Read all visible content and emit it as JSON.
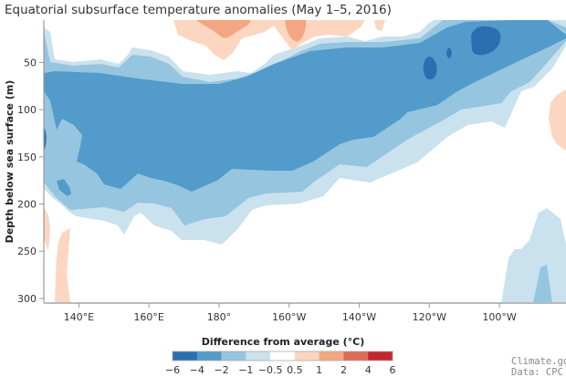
{
  "chart_data": {
    "type": "heatmap",
    "subtype": "filled-contour",
    "title": "Equatorial subsurface temperature anomalies (May 1–5, 2016)",
    "xlabel": "",
    "ylabel": "Depth below sea surface (m)",
    "x_ticks": [
      "140°E",
      "160°E",
      "180°",
      "160°W",
      "140°W",
      "120°W",
      "100°W"
    ],
    "x_tick_values_lon_east": [
      140,
      160,
      180,
      200,
      220,
      240,
      260
    ],
    "xlim_lon_east": [
      130,
      279
    ],
    "y_ticks": [
      "50",
      "100",
      "150",
      "200",
      "250",
      "300"
    ],
    "y_tick_values": [
      50,
      100,
      150,
      200,
      250,
      300
    ],
    "ylim": [
      305,
      5
    ],
    "legend": {
      "title": "Difference from average (°C)",
      "placement": "bottom-center",
      "levels": [
        "−6",
        "−4",
        "−2",
        "−1",
        "−0.5",
        "0.5",
        "1",
        "2",
        "4",
        "6"
      ],
      "colors": [
        "#2b6fb0",
        "#529bcb",
        "#95c5df",
        "#cae1ee",
        "#ffffff",
        "#fcd6c1",
        "#f4a582",
        "#dd6b57",
        "#c1272d"
      ]
    },
    "features": [
      "Cold anomalies (−2 to −4 °C) span 50–200 m depth across the basin, shoaling eastward",
      "Cores below −4 °C near 120°W–105°W at 25–80 m",
      "Weak warm anomalies (0.5–2 °C) near surface 170°E–150°W",
      "Warm anomaly 0.5–1 °C near 85°W at 90–160 m",
      "Weak cold anomaly near 90°W–80°W below 230 m"
    ]
  },
  "credits": {
    "source": "Climate.gov",
    "data": "Data: CPC"
  }
}
